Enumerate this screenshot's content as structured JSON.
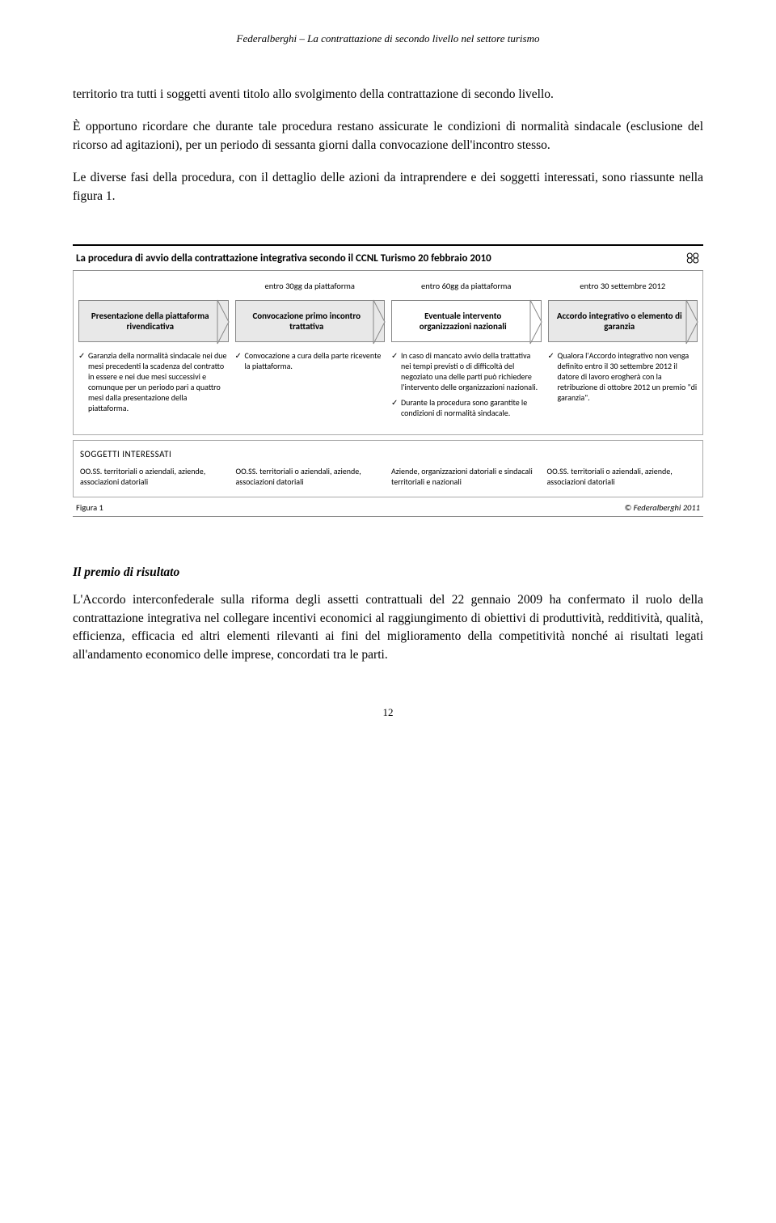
{
  "header": "Federalberghi – La contrattazione di secondo livello nel settore turismo",
  "paragraphs": {
    "p1": "territorio tra tutti i soggetti aventi titolo allo svolgimento della contrattazione di secondo livello.",
    "p2": "È opportuno ricordare che durante tale procedura restano assicurate le condizioni di normalità sindacale (esclusione del ricorso ad agitazioni), per un periodo di sessanta giorni dalla convocazione dell'incontro stesso.",
    "p3": "Le diverse fasi della procedura, con il dettaglio delle azioni da intraprendere e dei soggetti interessati, sono riassunte nella figura 1."
  },
  "diagram": {
    "title": "La procedura di avvio della contrattazione integrativa secondo il CCNL Turismo 20 febbraio 2010",
    "phases": [
      {
        "timing": "",
        "label": "Presentazione della piattaforma rivendicativa",
        "bg": "grey",
        "notes": [
          "Garanzia della normalità sindacale nei due mesi precedenti la scadenza del contratto in essere e nei due mesi successivi e comunque per un periodo pari a quattro mesi dalla presentazione della piattaforma."
        ],
        "subjects": "OO.SS. territoriali o aziendali, aziende, associazioni datoriali"
      },
      {
        "timing": "entro 30gg da piattaforma",
        "label": "Convocazione primo incontro trattativa",
        "bg": "grey",
        "notes": [
          "Convocazione a cura della parte ricevente la piattaforma."
        ],
        "subjects": "OO.SS. territoriali o aziendali, aziende, associazioni datoriali"
      },
      {
        "timing": "entro 60gg da piattaforma",
        "label": "Eventuale intervento organizzazioni nazionali",
        "bg": "white",
        "notes": [
          "In caso di mancato avvio della trattativa nei tempi previsti o di difficoltà del negoziato una delle parti può richiedere l'intervento delle organizzazioni nazionali.",
          "Durante la procedura sono garantite le condizioni di normalità sindacale."
        ],
        "subjects": "Aziende, organizzazioni datoriali e sindacali territoriali e nazionali"
      },
      {
        "timing": "entro 30 settembre 2012",
        "label": "Accordo integrativo o elemento di garanzia",
        "bg": "grey",
        "notes": [
          "Qualora l'Accordo integrativo non venga definito entro il 30 settembre 2012 il datore di lavoro erogherà con la retribuzione di ottobre 2012 un premio \"di garanzia\"."
        ],
        "subjects": "OO.SS. territoriali o aziendali, aziende, associazioni datoriali"
      }
    ],
    "subjects_title": "SOGGETTI INTERESSATI",
    "caption_left": "Figura 1",
    "caption_right": "© Federalberghi 2011"
  },
  "section2": {
    "heading": "Il premio di risultato",
    "body": "L'Accordo interconfederale sulla riforma degli assetti contrattuali del 22 gennaio 2009 ha confermato il ruolo della contrattazione integrativa nel collegare incentivi economici al raggiungimento di obiettivi di produttività, redditività, qualità, efficienza, efficacia ed altri elementi rilevanti ai fini del miglioramento della competitività nonché ai risultati legati all'andamento economico delle imprese, concordati tra le parti."
  },
  "page_number": "12",
  "colors": {
    "phase_grey": "#e8e8e8",
    "phase_white": "#ffffff",
    "border": "#888888"
  }
}
